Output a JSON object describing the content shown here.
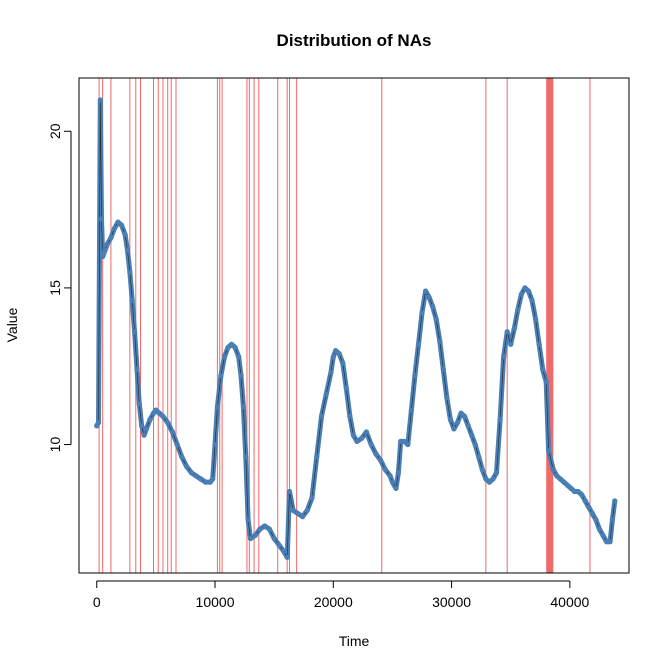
{
  "chart_data": {
    "type": "line",
    "title": "Distribution of NAs",
    "xlabel": "Time",
    "ylabel": "Value",
    "xlim": [
      -1500,
      45000
    ],
    "ylim": [
      5.9,
      21.7
    ],
    "x_ticks": [
      0,
      10000,
      20000,
      30000,
      40000
    ],
    "y_ticks": [
      10,
      15,
      20
    ],
    "grid": false,
    "colors": {
      "series": "#4a7fb5",
      "na_marker": "#f06a6a",
      "frame": "#000000"
    },
    "na_positions": [
      200,
      500,
      1200,
      2800,
      3300,
      3700,
      4800,
      5200,
      5600,
      6000,
      6300,
      6700,
      10200,
      10400,
      10600,
      12700,
      12900,
      13300,
      13700,
      15300,
      16100,
      16300,
      16900,
      24100,
      32900,
      34700,
      41700
    ],
    "na_block": [
      38000,
      38600
    ],
    "series": [
      {
        "x": [
          0,
          150,
          300,
          400,
          500,
          600,
          700,
          900,
          1200,
          1500,
          1800,
          2100,
          2400,
          2600,
          2800,
          3000,
          3200,
          3400,
          3600,
          3800,
          4000,
          4200,
          4500,
          4800,
          5000,
          5300,
          5600,
          6000,
          6400,
          6800,
          7200,
          7600,
          8000,
          8400,
          8800,
          9200,
          9600,
          9800,
          10000,
          10200,
          10500,
          10800,
          11100,
          11400,
          11700,
          12000,
          12200,
          12400,
          12600,
          12800,
          13000,
          13400,
          13800,
          14200,
          14600,
          15000,
          15400,
          15800,
          16100,
          16300,
          16600,
          17000,
          17400,
          17800,
          18200,
          18600,
          19000,
          19400,
          19800,
          20000,
          20200,
          20500,
          20800,
          21100,
          21400,
          21700,
          22000,
          22400,
          22800,
          23200,
          23600,
          24000,
          24400,
          24800,
          25000,
          25300,
          25500,
          25700,
          26000,
          26300,
          26600,
          26900,
          27200,
          27500,
          27800,
          28100,
          28400,
          28700,
          29000,
          29300,
          29600,
          29900,
          30200,
          30500,
          30800,
          31100,
          31400,
          31700,
          32000,
          32300,
          32600,
          32900,
          33200,
          33500,
          33800,
          34100,
          34400,
          34700,
          35000,
          35300,
          35600,
          35900,
          36200,
          36500,
          36800,
          37100,
          37400,
          37700,
          38000,
          38200,
          38600,
          38900,
          39200,
          39500,
          39800,
          40100,
          40400,
          40700,
          41000,
          41300,
          41600,
          41900,
          42200,
          42500,
          42800,
          43100,
          43400,
          43600,
          43800
        ],
        "values": [
          10.6,
          10.7,
          21.0,
          17.2,
          16.0,
          16.1,
          16.2,
          16.4,
          16.6,
          16.9,
          17.1,
          17.0,
          16.7,
          16.2,
          15.5,
          14.6,
          13.6,
          12.4,
          11.3,
          10.6,
          10.3,
          10.5,
          10.8,
          11.0,
          11.1,
          11.0,
          10.9,
          10.7,
          10.4,
          10.0,
          9.6,
          9.3,
          9.1,
          9.0,
          8.9,
          8.8,
          8.8,
          8.9,
          10.0,
          11.2,
          12.2,
          12.8,
          13.1,
          13.2,
          13.1,
          12.8,
          12.2,
          11.2,
          9.6,
          7.6,
          7.0,
          7.1,
          7.3,
          7.4,
          7.3,
          7.0,
          6.8,
          6.6,
          6.4,
          8.5,
          7.9,
          7.8,
          7.7,
          7.9,
          8.3,
          9.6,
          10.9,
          11.6,
          12.3,
          12.8,
          13.0,
          12.9,
          12.6,
          11.8,
          10.9,
          10.3,
          10.1,
          10.2,
          10.4,
          10.0,
          9.7,
          9.5,
          9.2,
          9.0,
          8.8,
          8.6,
          9.1,
          10.1,
          10.1,
          10.0,
          11.1,
          12.2,
          13.2,
          14.2,
          14.9,
          14.7,
          14.4,
          14.0,
          13.3,
          12.4,
          11.5,
          10.8,
          10.5,
          10.7,
          11.0,
          10.9,
          10.6,
          10.3,
          10.0,
          9.6,
          9.2,
          8.9,
          8.8,
          8.9,
          9.1,
          10.8,
          12.8,
          13.6,
          13.2,
          13.7,
          14.3,
          14.8,
          15.0,
          14.9,
          14.6,
          14.0,
          13.2,
          12.4,
          12.0,
          9.8,
          9.2,
          9.0,
          8.9,
          8.8,
          8.7,
          8.6,
          8.5,
          8.5,
          8.4,
          8.2,
          8.0,
          7.8,
          7.6,
          7.3,
          7.1,
          6.9,
          6.9,
          7.6,
          8.2
        ]
      }
    ]
  }
}
